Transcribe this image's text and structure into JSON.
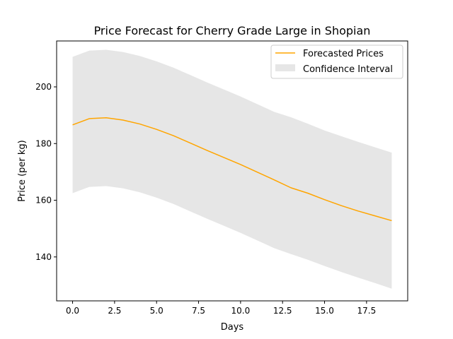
{
  "chart_data": {
    "type": "line",
    "title": "Price Forecast for Cherry Grade Large in Shopian",
    "xlabel": "Days",
    "ylabel": "Price (per kg)",
    "xlim": [
      -0.95,
      19.95
    ],
    "ylim": [
      124.5,
      216.2
    ],
    "xticks": [
      0.0,
      2.5,
      5.0,
      7.5,
      10.0,
      12.5,
      15.0,
      17.5
    ],
    "xtick_labels": [
      "0.0",
      "2.5",
      "5.0",
      "7.5",
      "10.0",
      "12.5",
      "15.0",
      "17.5"
    ],
    "yticks": [
      140,
      160,
      180,
      200
    ],
    "ytick_labels": [
      "140",
      "160",
      "180",
      "200"
    ],
    "grid": false,
    "legend_position": "top-right",
    "x": [
      0,
      1,
      2,
      3,
      4,
      5,
      6,
      7,
      8,
      9,
      10,
      11,
      12,
      13,
      14,
      15,
      16,
      17,
      18,
      19
    ],
    "series": [
      {
        "name": "Forecasted Prices",
        "color": "#ffa500",
        "values": [
          186.6,
          188.8,
          189.1,
          188.3,
          186.9,
          185.0,
          182.8,
          180.2,
          177.6,
          175.1,
          172.6,
          169.9,
          167.2,
          164.4,
          162.5,
          160.2,
          158.1,
          156.2,
          154.5,
          152.8
        ]
      }
    ],
    "band": {
      "name": "Confidence Interval",
      "color": "#e6e6e6",
      "lower": [
        162.5,
        164.7,
        165.0,
        164.2,
        162.8,
        160.9,
        158.7,
        156.1,
        153.5,
        151.0,
        148.5,
        145.8,
        143.1,
        141.0,
        139.0,
        136.8,
        134.7,
        132.7,
        130.8,
        128.8
      ],
      "upper": [
        210.6,
        212.8,
        213.1,
        212.3,
        210.9,
        209.0,
        206.8,
        204.2,
        201.6,
        199.1,
        196.6,
        193.9,
        191.2,
        189.3,
        187.0,
        184.6,
        182.6,
        180.6,
        178.7,
        176.8
      ]
    }
  }
}
